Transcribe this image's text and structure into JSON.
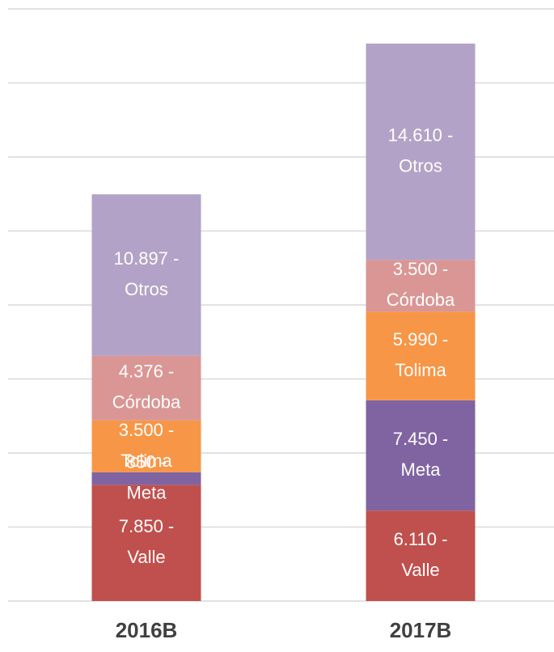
{
  "chart_data": {
    "type": "stacked_bar",
    "categories": [
      "2016B",
      "2017B"
    ],
    "series": [
      {
        "name": "Valle",
        "color": "#c0504d",
        "values": [
          7850,
          6110
        ],
        "value_labels": [
          "7.850 - Valle",
          "6.110 - Valle"
        ]
      },
      {
        "name": "Meta",
        "color": "#8064a2",
        "values": [
          850,
          7450
        ],
        "value_labels": [
          "850 - Meta",
          "7.450 - Meta"
        ]
      },
      {
        "name": "Tolima",
        "color": "#f79646",
        "values": [
          3500,
          5990
        ],
        "value_labels": [
          "3.500 - Tolima",
          "5.990 - Tolima"
        ]
      },
      {
        "name": "Córdoba",
        "color": "#da9694",
        "values": [
          4376,
          3500
        ],
        "value_labels": [
          "4.376 - Córdoba",
          "3.500 - Córdoba"
        ]
      },
      {
        "name": "Otros",
        "color": "#b3a2c7",
        "values": [
          10897,
          14610
        ],
        "value_labels": [
          "10.897 - Otros",
          "14.610 - Otros"
        ]
      }
    ],
    "ylim": [
      0,
      40000
    ],
    "yticks": [
      0,
      5000,
      10000,
      15000,
      20000,
      25000,
      30000,
      35000,
      40000
    ],
    "grid": true
  }
}
